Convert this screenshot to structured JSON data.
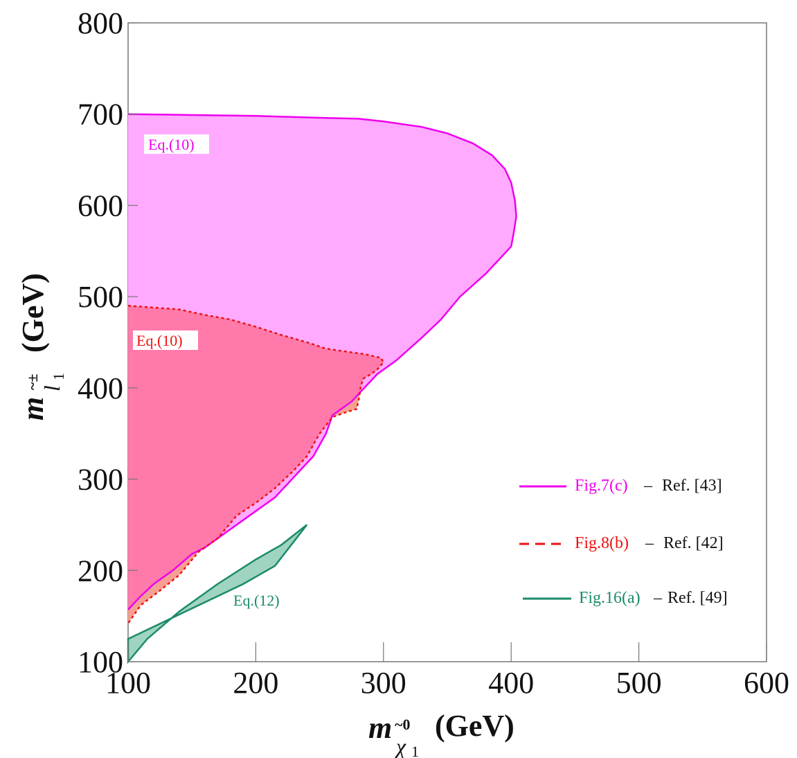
{
  "chart_data": {
    "type": "area",
    "xlabel": {
      "base": "m",
      "sub_symbol": "χ",
      "sub_top": "~0",
      "sub_index": "1",
      "unit": "(GeV)"
    },
    "ylabel": {
      "base": "m",
      "sub_symbol": "l",
      "sub_top": "~±",
      "sub_index": "1",
      "unit": "(GeV)"
    },
    "xlim": [
      100,
      600
    ],
    "ylim": [
      100,
      800
    ],
    "x_ticks": [
      100,
      200,
      300,
      400,
      500,
      600
    ],
    "y_ticks": [
      100,
      200,
      300,
      400,
      500,
      600,
      700,
      800
    ],
    "x_tick_labels": [
      "100",
      "200",
      "300",
      "400",
      "500",
      "600"
    ],
    "y_tick_labels": [
      "100",
      "200",
      "300",
      "400",
      "500",
      "600",
      "700",
      "800"
    ],
    "grid": false,
    "legend_position": "right",
    "series": [
      {
        "legend_figure": "Fig.7(c)",
        "legend_ref": "Ref. [43]",
        "region_label": "Eq.(10)",
        "line_color": "#ee00ee",
        "fill_color": "#ffaaff",
        "line_style": "solid",
        "boundary": [
          [
            100,
            700
          ],
          [
            150,
            699
          ],
          [
            200,
            698
          ],
          [
            250,
            696
          ],
          [
            280,
            695
          ],
          [
            300,
            692
          ],
          [
            330,
            686
          ],
          [
            350,
            679
          ],
          [
            370,
            668
          ],
          [
            385,
            655
          ],
          [
            395,
            640
          ],
          [
            400,
            625
          ],
          [
            403,
            605
          ],
          [
            404,
            588
          ],
          [
            402,
            570
          ],
          [
            400,
            555
          ],
          [
            390,
            540
          ],
          [
            380,
            525
          ],
          [
            360,
            500
          ],
          [
            345,
            475
          ],
          [
            330,
            455
          ],
          [
            310,
            430
          ],
          [
            295,
            415
          ],
          [
            285,
            400
          ],
          [
            275,
            385
          ],
          [
            260,
            370
          ],
          [
            255,
            350
          ],
          [
            245,
            325
          ],
          [
            235,
            310
          ],
          [
            225,
            295
          ],
          [
            215,
            280
          ],
          [
            200,
            265
          ],
          [
            190,
            255
          ],
          [
            180,
            245
          ],
          [
            170,
            235
          ],
          [
            160,
            225
          ],
          [
            150,
            218
          ],
          [
            135,
            200
          ],
          [
            120,
            185
          ],
          [
            110,
            172
          ],
          [
            100,
            157
          ]
        ]
      },
      {
        "legend_figure": "Fig.8(b)",
        "legend_ref": "Ref. [42]",
        "region_label": "Eq.(10)",
        "line_color": "#ee1111",
        "fill_color": "#ff7aaa",
        "fill_below_color": "#f5a090",
        "line_style": "dashed",
        "boundary": [
          [
            100,
            490
          ],
          [
            120,
            488
          ],
          [
            140,
            486
          ],
          [
            160,
            480
          ],
          [
            180,
            475
          ],
          [
            200,
            467
          ],
          [
            220,
            458
          ],
          [
            240,
            450
          ],
          [
            255,
            443
          ],
          [
            270,
            440
          ],
          [
            285,
            437
          ],
          [
            298,
            433
          ],
          [
            300,
            428
          ],
          [
            295,
            420
          ],
          [
            290,
            415
          ],
          [
            284,
            410
          ],
          [
            282,
            400
          ],
          [
            281,
            390
          ],
          [
            279,
            377
          ],
          [
            270,
            373
          ],
          [
            260,
            368
          ],
          [
            250,
            350
          ],
          [
            240,
            325
          ],
          [
            230,
            310
          ],
          [
            215,
            290
          ],
          [
            200,
            274
          ],
          [
            185,
            260
          ],
          [
            170,
            235
          ],
          [
            155,
            220
          ],
          [
            140,
            195
          ],
          [
            125,
            178
          ],
          [
            110,
            162
          ],
          [
            100,
            142
          ]
        ]
      },
      {
        "legend_figure": "Fig.16(a)",
        "legend_ref": "Ref. [49]",
        "region_label": "Eq.(12)",
        "line_color": "#1a8a6a",
        "fill_color": "#9fd4c0",
        "line_style": "solid",
        "boundary": [
          [
            100,
            125
          ],
          [
            130,
            145
          ],
          [
            160,
            165
          ],
          [
            190,
            185
          ],
          [
            215,
            205
          ],
          [
            240,
            250
          ],
          [
            220,
            228
          ],
          [
            200,
            212
          ],
          [
            170,
            185
          ],
          [
            140,
            155
          ],
          [
            115,
            125
          ],
          [
            100,
            100
          ]
        ]
      }
    ]
  }
}
